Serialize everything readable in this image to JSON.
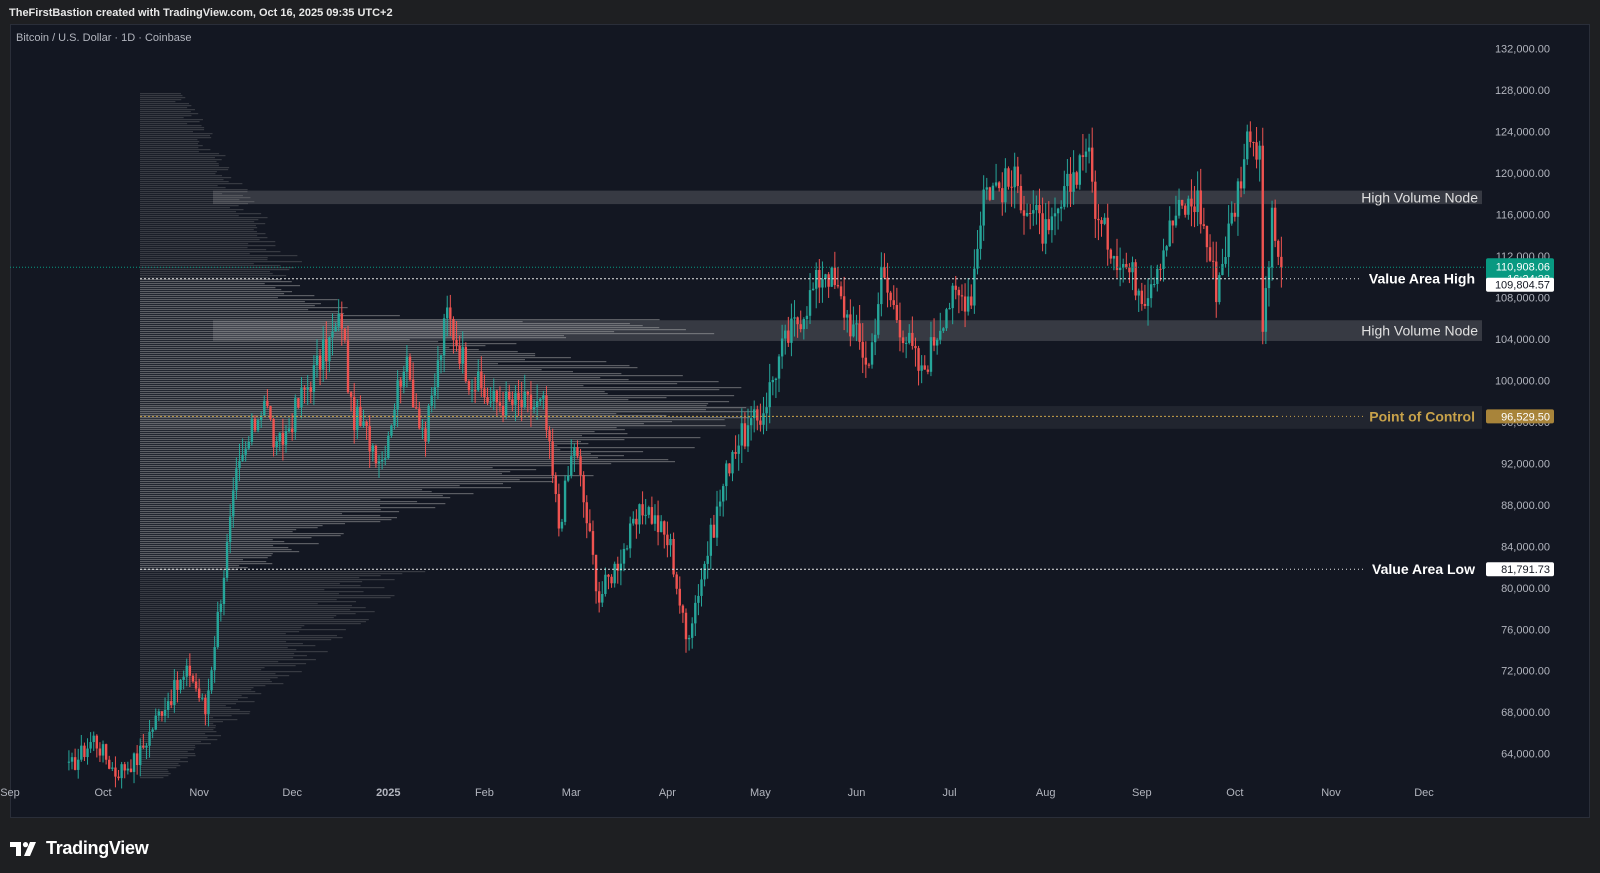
{
  "header": {
    "credit": "TheFirstBastion created with TradingView.com, Oct 16, 2025 09:35 UTC+2"
  },
  "symbol": "Bitcoin / U.S. Dollar · 1D · Coinbase",
  "footer": {
    "brand": "TradingView"
  },
  "colors": {
    "up": "#26a69a",
    "down": "#ef5350",
    "poc": "#c8a24a",
    "background": "#131722",
    "price_tag": "#089981"
  },
  "chart_data": {
    "type": "candlestick",
    "x_ticks": [
      "Sep",
      "Oct",
      "Nov",
      "Dec",
      "2025",
      "Feb",
      "Mar",
      "Apr",
      "May",
      "Jun",
      "Jul",
      "Aug",
      "Sep",
      "Oct",
      "Nov",
      "Dec"
    ],
    "y_ticks": [
      "132,000.00",
      "128,000.00",
      "124,000.00",
      "120,000.00",
      "116,000.00",
      "112,000.00",
      "108,000.00",
      "104,000.00",
      "100,000.00",
      "96,000.00",
      "92,000.00",
      "88,000.00",
      "84,000.00",
      "80,000.00",
      "76,000.00",
      "72,000.00",
      "68,000.00",
      "64,000.00"
    ],
    "ylim": [
      60500,
      133500
    ],
    "price_path": [
      [
        "2024-09-20",
        62500
      ],
      [
        "2024-09-28",
        65500
      ],
      [
        "2024-10-05",
        62200
      ],
      [
        "2024-10-12",
        63500
      ],
      [
        "2024-10-20",
        68500
      ],
      [
        "2024-10-29",
        72000
      ],
      [
        "2024-11-03",
        68000
      ],
      [
        "2024-11-06",
        75000
      ],
      [
        "2024-11-13",
        90500
      ],
      [
        "2024-11-22",
        98500
      ],
      [
        "2024-11-26",
        93000
      ],
      [
        "2024-12-05",
        99000
      ],
      [
        "2024-12-17",
        106000
      ],
      [
        "2024-12-20",
        97000
      ],
      [
        "2024-12-30",
        92500
      ],
      [
        "2025-01-06",
        102000
      ],
      [
        "2025-01-13",
        94500
      ],
      [
        "2025-01-20",
        106500
      ],
      [
        "2025-01-27",
        100500
      ],
      [
        "2025-02-03",
        98000
      ],
      [
        "2025-02-20",
        97500
      ],
      [
        "2025-02-25",
        86000
      ],
      [
        "2025-03-02",
        94000
      ],
      [
        "2025-03-10",
        79000
      ],
      [
        "2025-03-25",
        88000
      ],
      [
        "2025-04-02",
        84000
      ],
      [
        "2025-04-07",
        75000
      ],
      [
        "2025-04-22",
        93500
      ],
      [
        "2025-05-01",
        96500
      ],
      [
        "2025-05-08",
        103000
      ],
      [
        "2025-05-22",
        111000
      ],
      [
        "2025-06-05",
        101500
      ],
      [
        "2025-06-09",
        110000
      ],
      [
        "2025-06-22",
        100500
      ],
      [
        "2025-06-30",
        107500
      ],
      [
        "2025-07-08",
        108500
      ],
      [
        "2025-07-12",
        118500
      ],
      [
        "2025-07-22",
        119000
      ],
      [
        "2025-08-02",
        113500
      ],
      [
        "2025-08-14",
        123000
      ],
      [
        "2025-08-18",
        115000
      ],
      [
        "2025-08-28",
        110500
      ],
      [
        "2025-09-02",
        108500
      ],
      [
        "2025-09-12",
        116000
      ],
      [
        "2025-09-19",
        117500
      ],
      [
        "2025-09-25",
        109000
      ],
      [
        "2025-10-01",
        117000
      ],
      [
        "2025-10-06",
        124800
      ],
      [
        "2025-10-09",
        121000
      ],
      [
        "2025-10-10",
        105000
      ],
      [
        "2025-10-13",
        115000
      ],
      [
        "2025-10-16",
        110908
      ]
    ],
    "volume_profile": {
      "value_area_high": 109804.57,
      "value_area_low": 81791.73,
      "point_of_control": 96529.5,
      "high_volume_nodes": [
        [
          117000,
          118300
        ],
        [
          103800,
          105800
        ]
      ]
    },
    "annotations": {
      "hvn_upper": "High Volume Node",
      "hvn_lower": "High Volume Node",
      "vah": "Value Area High",
      "poc": "Point of Control",
      "val": "Value Area Low"
    },
    "price_labels": {
      "current_price": "110,908.06",
      "countdown": "16:24:28",
      "vah": "109,804.57",
      "poc": "96,529.50",
      "val": "81,791.73"
    },
    "current_price_value": 110908.06
  }
}
